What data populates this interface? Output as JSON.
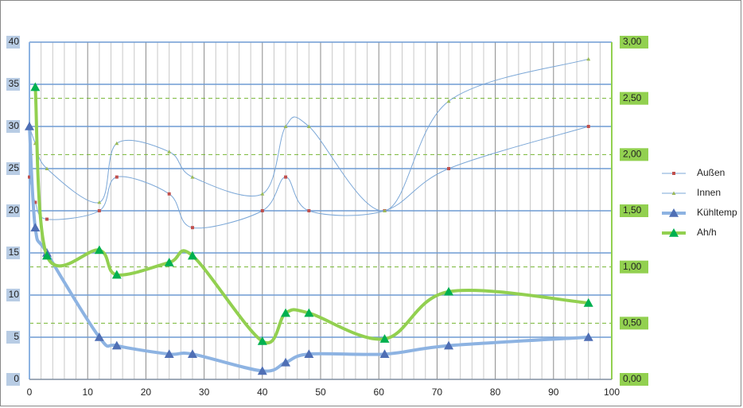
{
  "chart_data": {
    "type": "scatter-smooth",
    "xlim": [
      0,
      100
    ],
    "xticks": [
      0,
      10,
      20,
      30,
      40,
      50,
      60,
      70,
      80,
      90,
      100
    ],
    "ylim": [
      0,
      40
    ],
    "yticks": [
      0,
      5,
      10,
      15,
      20,
      25,
      30,
      35,
      40
    ],
    "y2lim": [
      0,
      3
    ],
    "y2ticks": [
      {
        "value": 0,
        "label": "0,00"
      },
      {
        "value": 0.5,
        "label": "0,50"
      },
      {
        "value": 1,
        "label": "1,00"
      },
      {
        "value": 1.5,
        "label": "1,50"
      },
      {
        "value": 2,
        "label": "2,00"
      },
      {
        "value": 2.5,
        "label": "2,50"
      },
      {
        "value": 3,
        "label": "3,00"
      }
    ],
    "grid": true,
    "legend": "right",
    "series": [
      {
        "name": "Außen",
        "color": "#7ba7d7",
        "marker_color": "#c0504d",
        "marker": "square",
        "width": 1,
        "x": [
          0,
          1,
          3,
          12,
          15,
          24,
          28,
          40,
          44,
          48,
          61,
          72,
          96
        ],
        "values": [
          24,
          21,
          19,
          20,
          24,
          22,
          18,
          20,
          24,
          20,
          20,
          25,
          30
        ]
      },
      {
        "name": "Innen",
        "color": "#7ba7d7",
        "marker_color": "#9bbb59",
        "marker": "triangle-small",
        "width": 1,
        "x": [
          0,
          1,
          3,
          12,
          15,
          24,
          28,
          40,
          44,
          48,
          61,
          72,
          96
        ],
        "values": [
          30,
          28,
          25,
          21,
          28,
          27,
          24,
          22,
          30,
          30,
          20,
          33,
          38
        ]
      },
      {
        "name": "Kühltemp",
        "color": "#8db3e2",
        "marker_color": "#4f6fb5",
        "marker": "triangle",
        "width": 4,
        "x": [
          0,
          1,
          3,
          12,
          15,
          24,
          28,
          40,
          44,
          48,
          61,
          72,
          96
        ],
        "values": [
          30,
          18,
          15,
          5,
          4,
          3,
          3,
          1,
          2,
          3,
          3,
          4,
          5
        ]
      },
      {
        "name": "Ah/h",
        "color": "#92d050",
        "marker_color": "#00b050",
        "marker": "triangle",
        "width": 4,
        "axis": "y2",
        "x": [
          1,
          3,
          12,
          15,
          24,
          28,
          40,
          44,
          48,
          61,
          72,
          96
        ],
        "values": [
          2.6,
          1.1,
          1.15,
          0.93,
          1.04,
          1.1,
          0.34,
          0.59,
          0.59,
          0.36,
          0.78,
          0.68
        ]
      }
    ]
  }
}
